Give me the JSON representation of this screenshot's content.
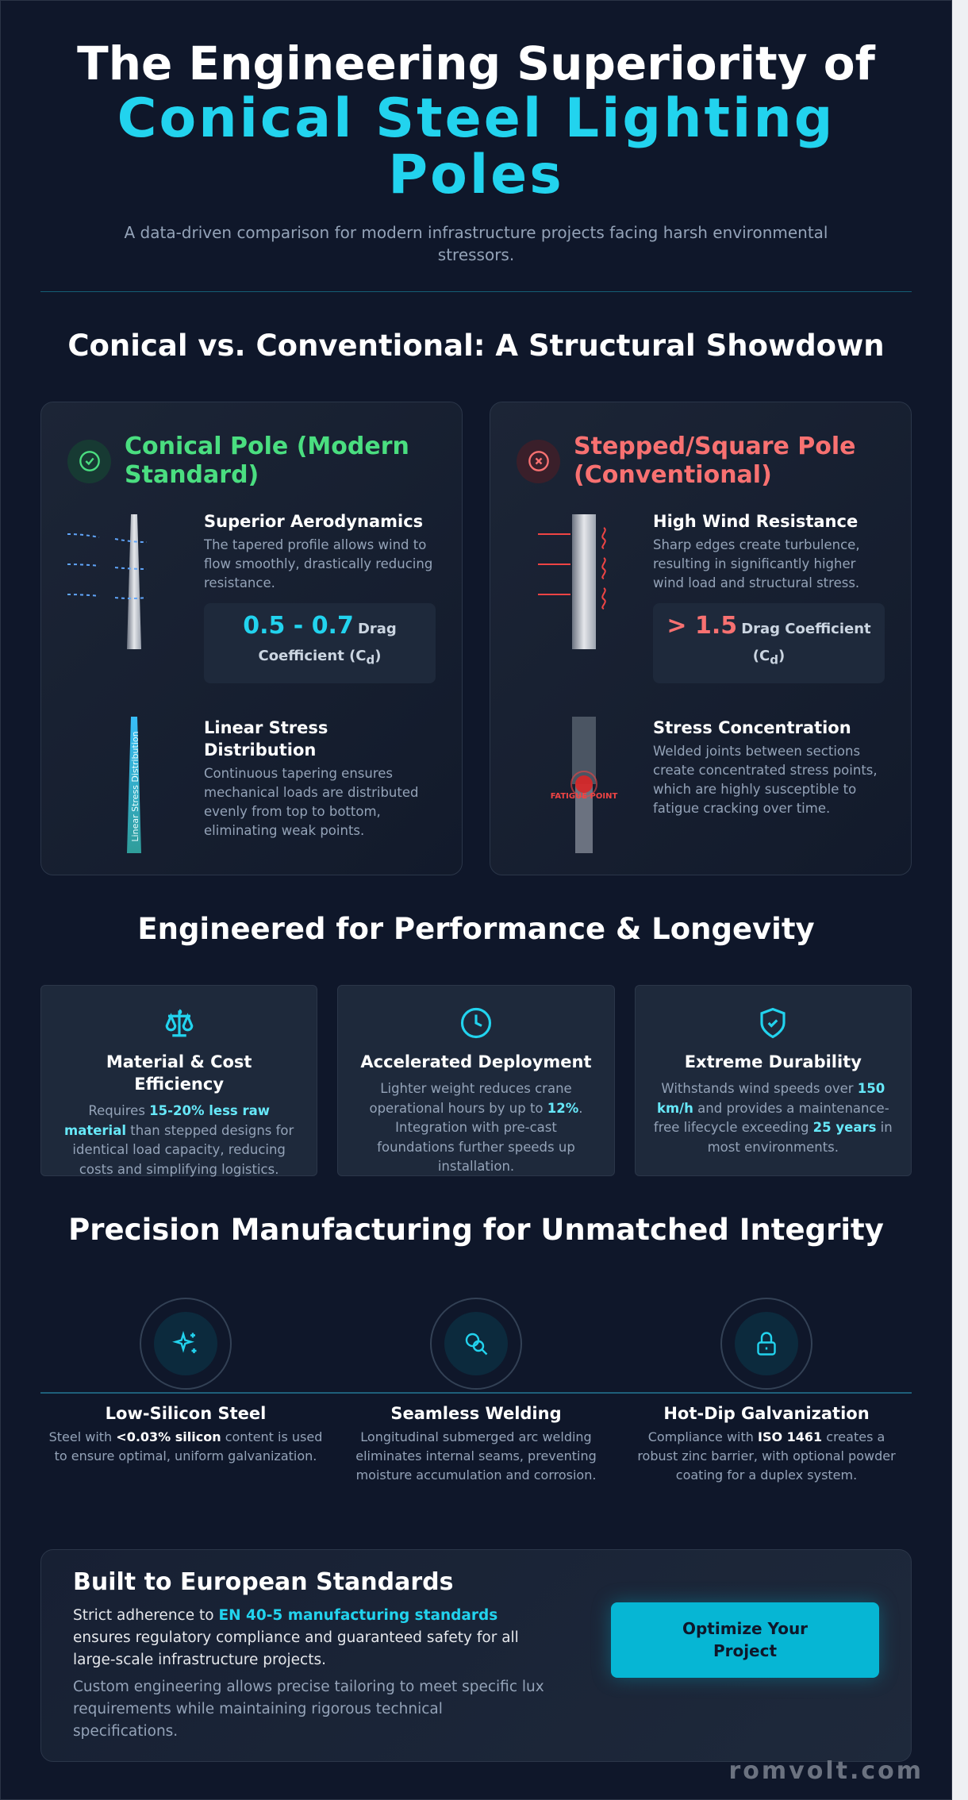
{
  "header": {
    "title_line1": "The Engineering Superiority of",
    "title_line2": "Conical Steel Lighting Poles",
    "subtitle": "A data-driven comparison for modern infrastructure projects facing harsh environmental stressors."
  },
  "showdown": {
    "heading": "Conical vs. Conventional: A Structural Showdown",
    "cards": [
      {
        "title": "Conical Pole (Modern Standard)",
        "items": [
          {
            "title": "Superior Aerodynamics",
            "body": "The tapered profile allows wind to flow smoothly, drastically reducing resistance.",
            "stat": {
              "value": "0.5 - 0.7",
              "label": "Drag Coefficient (C",
              "subscript": "d",
              "label_end": ")"
            }
          },
          {
            "title": "Linear Stress Distribution",
            "body": "Continuous tapering ensures mechanical loads are distributed evenly from top to bottom, eliminating weak points.",
            "diagram_label": "Linear Stress Distribution"
          }
        ]
      },
      {
        "title": "Stepped/Square Pole (Conventional)",
        "items": [
          {
            "title": "High Wind Resistance",
            "body": "Sharp edges create turbulence, resulting in significantly higher wind load and structural stress.",
            "stat": {
              "value": "> 1.5",
              "label": "Drag Coefficient (C",
              "subscript": "d",
              "label_end": ")"
            }
          },
          {
            "title": "Stress Concentration",
            "body": "Welded joints between sections create concentrated stress points, which are highly susceptible to fatigue cracking over time.",
            "diagram_label": "FATIGUE POINT"
          }
        ]
      }
    ]
  },
  "performance": {
    "heading": "Engineered for Performance & Longevity",
    "features": [
      {
        "title": "Material & Cost Efficiency",
        "body": [
          {
            "text": "Requires "
          },
          {
            "text": "15-20% less raw material",
            "strong": true
          },
          {
            "text": " than stepped designs for identical load capacity, reducing costs and simplifying logistics."
          }
        ]
      },
      {
        "title": "Accelerated Deployment",
        "body": [
          {
            "text": "Lighter weight reduces crane operational hours by up to "
          },
          {
            "text": "12%",
            "strong": true
          },
          {
            "text": ". Integration with pre-cast foundations further speeds up installation."
          }
        ]
      },
      {
        "title": "Extreme Durability",
        "body": [
          {
            "text": "Withstands wind speeds over "
          },
          {
            "text": "150 km/h",
            "strong": true
          },
          {
            "text": " and provides a maintenance-free lifecycle exceeding "
          },
          {
            "text": "25 years",
            "strong": true
          },
          {
            "text": " in most environments."
          }
        ]
      }
    ]
  },
  "manufacturing": {
    "heading": "Precision Manufacturing for Unmatched Integrity",
    "steps": [
      {
        "title": "Low-Silicon Steel",
        "body": [
          {
            "text": "Steel with "
          },
          {
            "text": "<0.03% silicon",
            "strong": true
          },
          {
            "text": " content is used to ensure optimal, uniform galvanization."
          }
        ]
      },
      {
        "title": "Seamless Welding",
        "body": [
          {
            "text": "Longitudinal submerged arc welding eliminates internal seams, preventing moisture accumulation and corrosion."
          }
        ]
      },
      {
        "title": "Hot-Dip Galvanization",
        "body": [
          {
            "text": "Compliance with "
          },
          {
            "text": "ISO 1461",
            "strong": true
          },
          {
            "text": " creates a robust zinc barrier, with optional powder coating for a duplex system."
          }
        ]
      }
    ]
  },
  "standards": {
    "heading": "Built to European Standards",
    "paragraph1": [
      {
        "text": "Strict adherence to "
      },
      {
        "text": "EN 40-5 manufacturing standards",
        "strong": true
      },
      {
        "text": " ensures regulatory compliance and guaranteed safety for all large-scale infrastructure projects."
      }
    ],
    "paragraph2": "Custom engineering allows precise tailoring to meet specific lux requirements while maintaining rigorous technical specifications.",
    "button": "Optimize Your Project"
  },
  "watermark": "romvolt.com"
}
